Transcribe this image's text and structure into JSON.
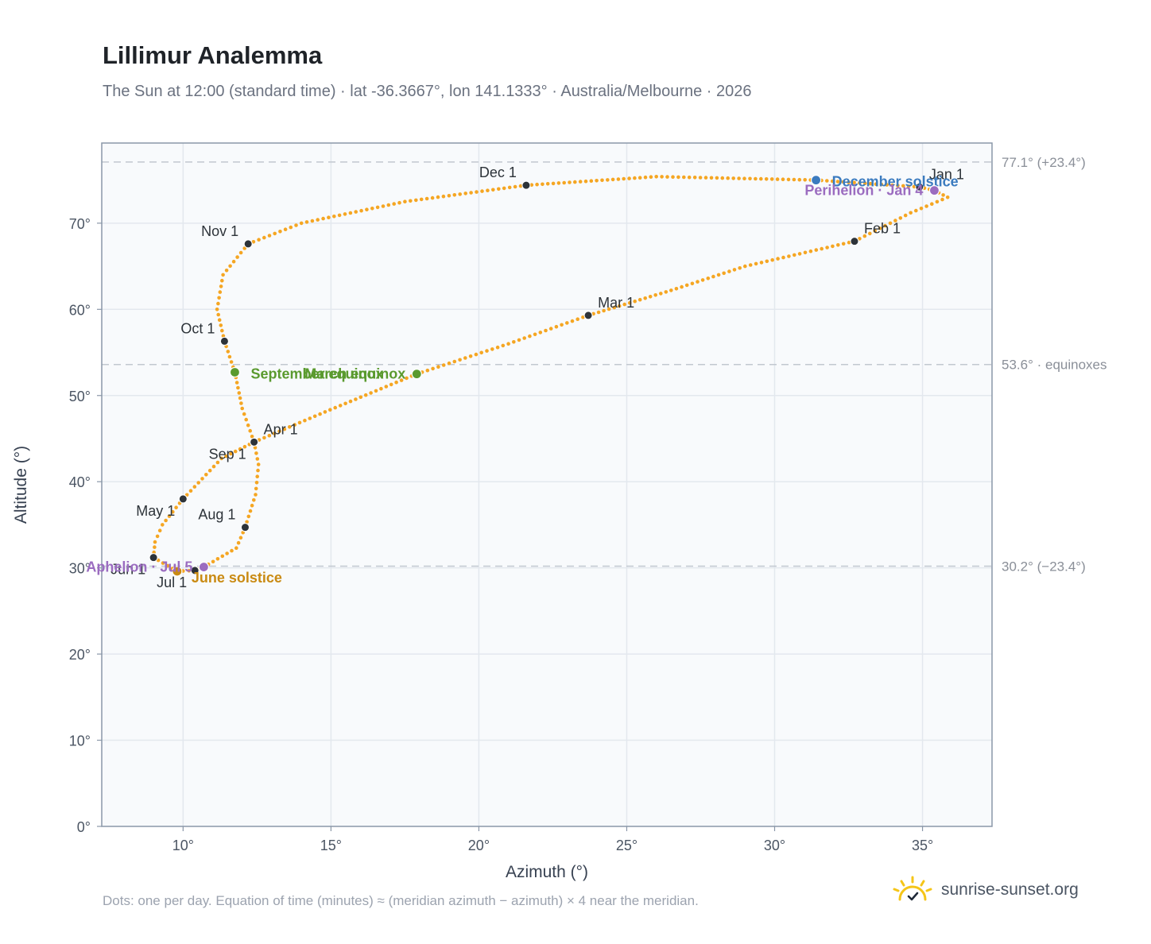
{
  "header": {
    "title": "Lillimur Analemma",
    "subtitle": "The Sun at 12:00 (standard time) · lat -36.3667°, lon 141.1333° · Australia/Melbourne · 2026"
  },
  "footer": {
    "note": "Dots: one per day. Equation of time (minutes) ≈ (meridian azimuth − azimuth) × 4 near the meridian.",
    "brand": "sunrise-sunset.org"
  },
  "colors": {
    "path": "#f5a623",
    "month_marker": "#2d3339",
    "equinox": "#5a9a2e",
    "june_solstice": "#c98a12",
    "december_solstice": "#3b7bbf",
    "apsis": "#9b6cc0",
    "grid": "#e3e8ee",
    "plot_bg": "#f8fafc",
    "frame": "#8a97a8",
    "reference_line": "#c2c8d0"
  },
  "chart_data": {
    "type": "scatter",
    "xlabel": "Azimuth (°)",
    "ylabel": "Altitude (°)",
    "xlim": [
      7.25,
      37.35
    ],
    "ylim": [
      0,
      79.3
    ],
    "xticks": [
      10,
      15,
      20,
      25,
      30,
      35
    ],
    "yticks": [
      0,
      10,
      20,
      30,
      40,
      50,
      60,
      70
    ],
    "tick_suffix": "°",
    "grid": true,
    "series": [
      {
        "description": "daily path",
        "points": [
          [
            35.4,
            73.8
          ],
          [
            35.85,
            73.0
          ],
          [
            34.6,
            71.2
          ],
          [
            32.7,
            67.9
          ],
          [
            29.0,
            65.0
          ],
          [
            26.5,
            62.2
          ],
          [
            23.7,
            59.3
          ],
          [
            21.0,
            56.0
          ],
          [
            17.9,
            52.5
          ],
          [
            14.8,
            48.1
          ],
          [
            12.4,
            44.6
          ],
          [
            11.3,
            42.7
          ],
          [
            10.0,
            38.0
          ],
          [
            9.3,
            35.0
          ],
          [
            9.05,
            33.0
          ],
          [
            9.0,
            31.2
          ],
          [
            9.8,
            29.6
          ],
          [
            10.4,
            29.7
          ],
          [
            10.7,
            30.1
          ],
          [
            11.8,
            32.3
          ],
          [
            12.1,
            34.7
          ],
          [
            12.45,
            38.5
          ],
          [
            12.55,
            42.0
          ],
          [
            12.4,
            44.6
          ],
          [
            12.0,
            48.5
          ],
          [
            11.75,
            52.7
          ],
          [
            11.4,
            56.3
          ],
          [
            11.15,
            60.0
          ],
          [
            11.35,
            64.0
          ],
          [
            12.2,
            67.6
          ],
          [
            14.0,
            70.0
          ],
          [
            17.5,
            72.5
          ],
          [
            21.6,
            74.4
          ],
          [
            26.0,
            75.4
          ],
          [
            31.4,
            75.0
          ],
          [
            34.9,
            74.2
          ],
          [
            35.4,
            73.8
          ]
        ]
      }
    ],
    "month_markers": [
      {
        "label": "Jan 1",
        "x": 34.9,
        "y": 74.2,
        "anchor": "right-above"
      },
      {
        "label": "Feb 1",
        "x": 32.7,
        "y": 67.9,
        "anchor": "right-above"
      },
      {
        "label": "Mar 1",
        "x": 23.7,
        "y": 59.3,
        "anchor": "right-above"
      },
      {
        "label": "Apr 1",
        "x": 12.4,
        "y": 44.6,
        "anchor": "right-above"
      },
      {
        "label": "May 1",
        "x": 10.0,
        "y": 38.0,
        "anchor": "left-below"
      },
      {
        "label": "Jun 1",
        "x": 9.0,
        "y": 31.2,
        "anchor": "left-below"
      },
      {
        "label": "Jul 1",
        "x": 10.4,
        "y": 29.7,
        "anchor": "left-below"
      },
      {
        "label": "Aug 1",
        "x": 12.1,
        "y": 34.7,
        "anchor": "left-above"
      },
      {
        "label": "Sep 1",
        "x": 12.4,
        "y": 44.6,
        "anchor": "left-below"
      },
      {
        "label": "Oct 1",
        "x": 11.4,
        "y": 56.3,
        "anchor": "left-above"
      },
      {
        "label": "Nov 1",
        "x": 12.2,
        "y": 67.6,
        "anchor": "left-above"
      },
      {
        "label": "Dec 1",
        "x": 21.6,
        "y": 74.4,
        "anchor": "left-above"
      }
    ],
    "special_points": [
      {
        "label": "March equinox",
        "x": 17.9,
        "y": 52.5,
        "color_key": "equinox",
        "anchor": "left"
      },
      {
        "label": "September equinox",
        "x": 11.75,
        "y": 52.7,
        "color_key": "equinox",
        "anchor": "right"
      },
      {
        "label": "June solstice",
        "x": 9.8,
        "y": 29.6,
        "color_key": "june_solstice",
        "anchor": "right-below"
      },
      {
        "label": "December solstice",
        "x": 31.4,
        "y": 75.0,
        "color_key": "december_solstice",
        "anchor": "right"
      },
      {
        "label": "Perihelion · Jan 4",
        "x": 35.4,
        "y": 73.8,
        "color_key": "apsis",
        "anchor": "left"
      },
      {
        "label": "Aphelion · Jul 5",
        "x": 10.7,
        "y": 30.1,
        "color_key": "apsis",
        "anchor": "left"
      }
    ],
    "reference_lines": [
      {
        "y": 77.1,
        "label": "77.1° (+23.4°)"
      },
      {
        "y": 53.6,
        "label": "53.6° · equinoxes"
      },
      {
        "y": 30.2,
        "label": "30.2° (−23.4°)"
      }
    ]
  }
}
